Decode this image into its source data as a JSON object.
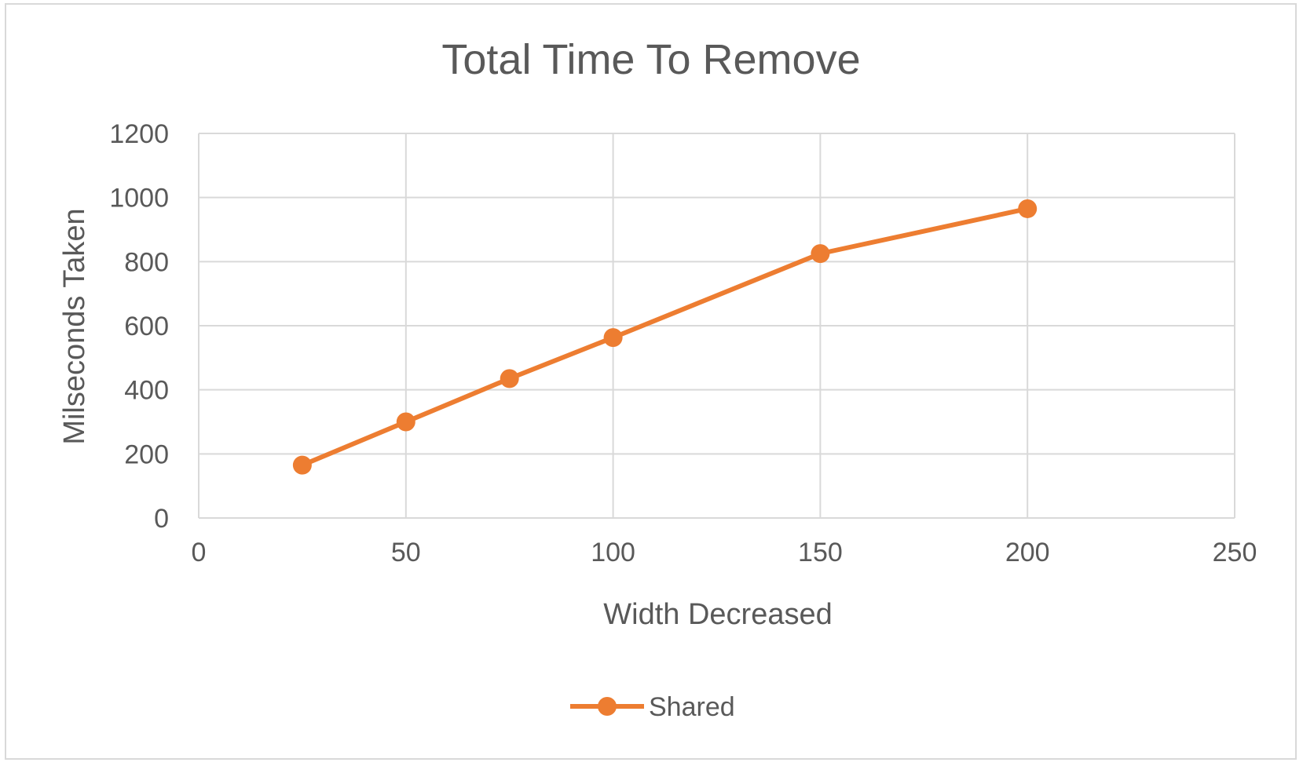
{
  "chart_data": {
    "type": "line",
    "title": "Total Time To Remove",
    "xlabel": "Width Decreased",
    "ylabel": "Milseconds Taken",
    "xlim": [
      0,
      250
    ],
    "ylim": [
      0,
      1200
    ],
    "x_ticks": [
      0,
      50,
      100,
      150,
      200,
      250
    ],
    "y_ticks": [
      0,
      200,
      400,
      600,
      800,
      1000,
      1200
    ],
    "grid": true,
    "legend_position": "bottom",
    "series": [
      {
        "name": "Shared",
        "color": "#ED7D31",
        "marker": "circle",
        "points": [
          {
            "x": 25,
            "y": 165
          },
          {
            "x": 50,
            "y": 300
          },
          {
            "x": 75,
            "y": 435
          },
          {
            "x": 100,
            "y": 563
          },
          {
            "x": 150,
            "y": 825
          },
          {
            "x": 200,
            "y": 965
          }
        ]
      }
    ]
  }
}
